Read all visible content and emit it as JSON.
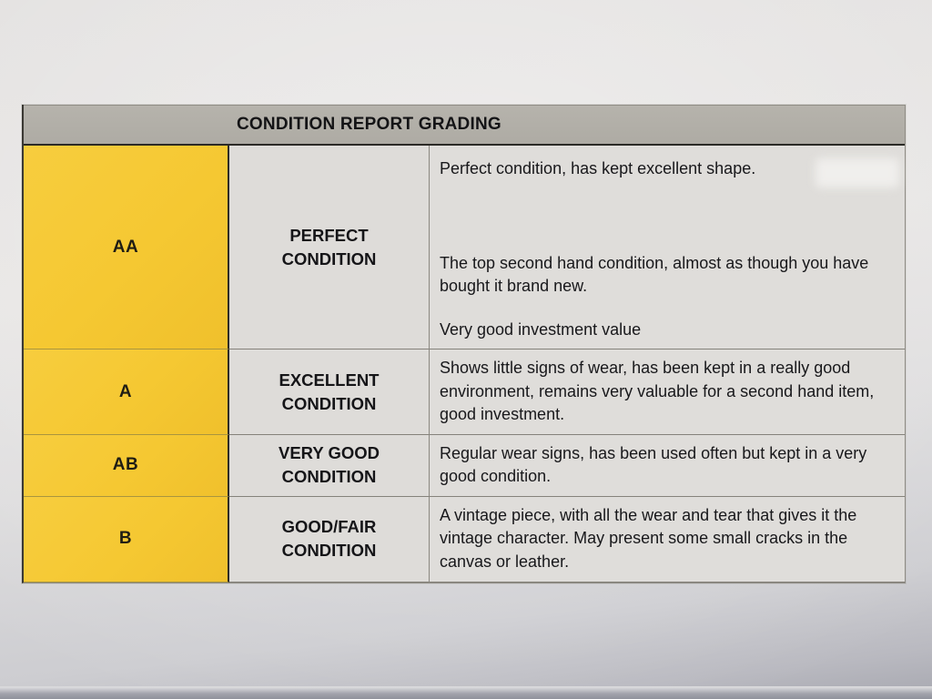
{
  "table": {
    "title": "CONDITION REPORT GRADING",
    "colors": {
      "grade_column_yellow": "#f5c832",
      "header_bar_gray": "#b2afa9",
      "cell_background_gray": "#dedcd9",
      "text": "#1b1b1e",
      "paper_background": "#e4e2e1"
    },
    "rows": [
      {
        "grade": "AA",
        "condition": "PERFECT CONDITION",
        "description": [
          "Perfect condition, has kept excellent shape.",
          "The top second hand condition, almost as though you have bought it brand new.",
          "Very good investment value"
        ]
      },
      {
        "grade": "A",
        "condition": "EXCELLENT CONDITION",
        "description": [
          "Shows little signs of wear, has been kept in a really good environment, remains very valuable for a second hand item, good investment."
        ]
      },
      {
        "grade": "AB",
        "condition": "VERY GOOD CONDITION",
        "description": [
          "Regular wear signs, has been used often but kept in a very good condition."
        ]
      },
      {
        "grade": "B",
        "condition": "GOOD/FAIR CONDITION",
        "description": [
          "A vintage piece, with all the wear and tear that gives it the vintage character. May present some small cracks in the canvas or leather."
        ]
      }
    ]
  }
}
